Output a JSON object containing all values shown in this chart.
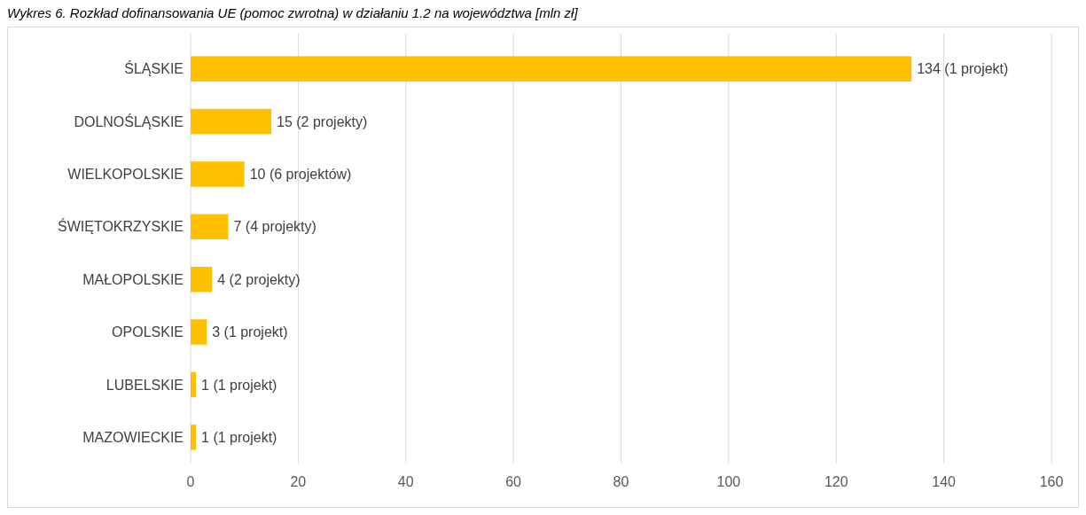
{
  "chart_data": {
    "type": "bar",
    "orientation": "horizontal",
    "title": "Wykres 6. Rozkład dofinansowania UE (pomoc zwrotna) w działaniu 1.2 na województwa [mln zł]",
    "categories": [
      "ŚLĄSKIE",
      "DOLNOŚLĄSKIE",
      "WIELKOPOLSKIE",
      "ŚWIĘTOKRZYSKIE",
      "MAŁOPOLSKIE",
      "OPOLSKIE",
      "LUBELSKIE",
      "MAZOWIECKIE"
    ],
    "values": [
      134,
      15,
      10,
      7,
      4,
      3,
      1,
      1
    ],
    "value_labels": [
      "134 (1 projekt)",
      "15 (2 projekty)",
      "10 (6 projektów)",
      "7 (4 projekty)",
      "4 (2 projekty)",
      "3 (1 projekt)",
      "1 (1 projekt)",
      "1 (1 projekt)"
    ],
    "color": "#ffc000",
    "xlim": [
      0,
      160
    ],
    "xticks": [
      0,
      20,
      40,
      60,
      80,
      100,
      120,
      140,
      160
    ],
    "grid": "x"
  }
}
